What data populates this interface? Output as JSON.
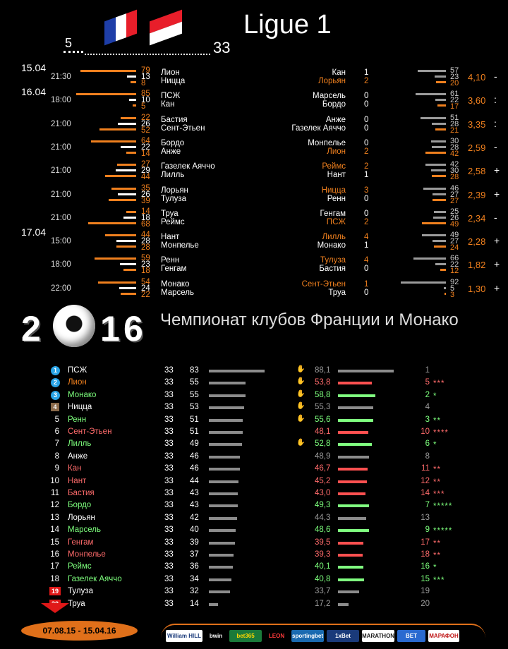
{
  "header": {
    "title": "Ligue 1",
    "rounds_played": "5",
    "rounds_total": "33"
  },
  "dates": [
    "15.04",
    "16.04",
    "17.04"
  ],
  "fixtures": [
    {
      "time": "21:30",
      "home": "Лион",
      "away": "Ницца",
      "h": "79",
      "d": "13",
      "a": "8",
      "hc": "orange",
      "ac": "white",
      "m_home": "Кан",
      "m_away": "Лорьян",
      "m_hg": "1",
      "m_ag": "2",
      "m_hc": "white",
      "m_ac": "orange",
      "p1": "57",
      "px": "23",
      "p2": "20",
      "odds": "4,10",
      "sign": "-"
    },
    {
      "time": "18:00",
      "home": "ПСЖ",
      "away": "Кан",
      "h": "85",
      "d": "10",
      "a": "5",
      "hc": "white",
      "ac": "white",
      "m_home": "Марсель",
      "m_away": "Бордо",
      "m_hg": "0",
      "m_ag": "0",
      "m_hc": "white",
      "m_ac": "white",
      "p1": "61",
      "px": "22",
      "p2": "17",
      "odds": "3,60",
      ":": "",
      "sign": ":"
    },
    {
      "time": "21:00",
      "home": "Бастия",
      "away": "Сент-Этьен",
      "h": "22",
      "d": "26",
      "a": "52",
      "hc": "white",
      "ac": "white",
      "m_home": "Анже",
      "m_away": "Газелек Аяччо",
      "m_hg": "0",
      "m_ag": "0",
      "m_hc": "white",
      "m_ac": "white",
      "p1": "51",
      "px": "28",
      "p2": "21",
      "odds": "3,35",
      "sign": ":"
    },
    {
      "time": "21:00",
      "home": "Бордо",
      "away": "Анже",
      "h": "64",
      "d": "22",
      "a": "14",
      "hc": "white",
      "ac": "white",
      "m_home": "Монпелье",
      "m_away": "Лион",
      "m_hg": "0",
      "m_ag": "2",
      "m_hc": "white",
      "m_ac": "orange",
      "p1": "30",
      "px": "28",
      "p2": "42",
      "odds": "2,59",
      "sign": "-"
    },
    {
      "time": "21:00",
      "home": "Газелек Аяччо",
      "away": "Лилль",
      "h": "27",
      "d": "29",
      "a": "44",
      "hc": "white",
      "ac": "white",
      "m_home": "Реймс",
      "m_away": "Нант",
      "m_hg": "2",
      "m_ag": "1",
      "m_hc": "orange",
      "m_ac": "white",
      "p1": "42",
      "px": "30",
      "p2": "28",
      "odds": "2,58",
      "sign": "+"
    },
    {
      "time": "21:00",
      "home": "Лорьян",
      "away": "Тулуза",
      "h": "35",
      "d": "26",
      "a": "39",
      "hc": "white",
      "ac": "white",
      "m_home": "Ницца",
      "m_away": "Ренн",
      "m_hg": "3",
      "m_ag": "0",
      "m_hc": "orange",
      "m_ac": "white",
      "p1": "46",
      "px": "27",
      "p2": "27",
      "odds": "2,39",
      "sign": "+"
    },
    {
      "time": "21:00",
      "home": "Труа",
      "away": "Реймс",
      "h": "14",
      "d": "18",
      "a": "68",
      "hc": "white",
      "ac": "white",
      "m_home": "Генгам",
      "m_away": "ПСЖ",
      "m_hg": "0",
      "m_ag": "2",
      "m_hc": "white",
      "m_ac": "orange",
      "p1": "25",
      "px": "26",
      "p2": "49",
      "odds": "2,34",
      "sign": "-"
    },
    {
      "time": "15:00",
      "home": "Нант",
      "away": "Монпелье",
      "h": "44",
      "d": "28",
      "a": "28",
      "hc": "white",
      "ac": "white",
      "m_home": "Лилль",
      "m_away": "Монако",
      "m_hg": "4",
      "m_ag": "1",
      "m_hc": "orange",
      "m_ac": "white",
      "p1": "49",
      "px": "27",
      "p2": "24",
      "odds": "2,28",
      "sign": "+"
    },
    {
      "time": "18:00",
      "home": "Ренн",
      "away": "Генгам",
      "h": "59",
      "d": "23",
      "a": "18",
      "hc": "white",
      "ac": "white",
      "m_home": "Тулуза",
      "m_away": "Бастия",
      "m_hg": "4",
      "m_ag": "0",
      "m_hc": "orange",
      "m_ac": "white",
      "p1": "66",
      "px": "22",
      "p2": "12",
      "odds": "1,82",
      "sign": "+"
    },
    {
      "time": "22:00",
      "home": "Монако",
      "away": "Марсель",
      "h": "54",
      "d": "24",
      "a": "22",
      "hc": "white",
      "ac": "white",
      "m_home": "Сент-Этьен",
      "m_away": "Труа",
      "m_hg": "1",
      "m_ag": "0",
      "m_hc": "orange",
      "m_ac": "white",
      "p1": "92",
      "px": "5",
      "p2": "3",
      "odds": "1,30",
      "sign": "+"
    }
  ],
  "season": {
    "year_left": "2",
    "year_right": "16",
    "year_one": "1",
    "heading": "Чемпионат клубов Франции и Монако"
  },
  "table": [
    {
      "pos": "1",
      "team": "ПСЖ",
      "tc": "white",
      "games": "33",
      "pts": "83",
      "rating": "88,1",
      "rc": "grey",
      "rank": "1",
      "rkc": "grey",
      "stars": "",
      "thumb": true,
      "mark": "badge"
    },
    {
      "pos": "2",
      "team": "Лион",
      "tc": "orange",
      "games": "33",
      "pts": "55",
      "rating": "53,8",
      "rc": "red",
      "rank": "5",
      "rkc": "red",
      "stars": "***",
      "thumb": true,
      "mark": "badge"
    },
    {
      "pos": "3",
      "team": "Монако",
      "tc": "green",
      "games": "33",
      "pts": "55",
      "rating": "58,8",
      "rc": "green",
      "rank": "2",
      "rkc": "green",
      "stars": "*",
      "thumb": true,
      "mark": "badge-dash"
    },
    {
      "pos": "4",
      "team": "Ницца",
      "tc": "white",
      "games": "33",
      "pts": "53",
      "rating": "55,3",
      "rc": "grey",
      "rank": "4",
      "rkc": "grey",
      "stars": "",
      "thumb": true,
      "mark": "brown"
    },
    {
      "pos": "5",
      "team": "Ренн",
      "tc": "green",
      "games": "33",
      "pts": "51",
      "rating": "55,6",
      "rc": "green",
      "rank": "3",
      "rkc": "green",
      "stars": "**",
      "thumb": true,
      "mark": ""
    },
    {
      "pos": "6",
      "team": "Сент-Этьен",
      "tc": "red",
      "games": "33",
      "pts": "51",
      "rating": "48,1",
      "rc": "red",
      "rank": "10",
      "rkc": "red",
      "stars": "****",
      "thumb": false,
      "mark": ""
    },
    {
      "pos": "7",
      "team": "Лилль",
      "tc": "green",
      "games": "33",
      "pts": "49",
      "rating": "52,8",
      "rc": "green",
      "rank": "6",
      "rkc": "green",
      "stars": "*",
      "thumb": true,
      "mark": ""
    },
    {
      "pos": "8",
      "team": "Анже",
      "tc": "white",
      "games": "33",
      "pts": "46",
      "rating": "48,9",
      "rc": "grey",
      "rank": "8",
      "rkc": "grey",
      "stars": "",
      "thumb": false,
      "mark": ""
    },
    {
      "pos": "9",
      "team": "Кан",
      "tc": "red",
      "games": "33",
      "pts": "46",
      "rating": "46,7",
      "rc": "red",
      "rank": "11",
      "rkc": "red",
      "stars": "**",
      "thumb": false,
      "mark": ""
    },
    {
      "pos": "10",
      "team": "Нант",
      "tc": "red",
      "games": "33",
      "pts": "44",
      "rating": "45,2",
      "rc": "red",
      "rank": "12",
      "rkc": "red",
      "stars": "**",
      "thumb": false,
      "mark": ""
    },
    {
      "pos": "11",
      "team": "Бастия",
      "tc": "red",
      "games": "33",
      "pts": "43",
      "rating": "43,0",
      "rc": "red",
      "rank": "14",
      "rkc": "red",
      "stars": "***",
      "thumb": false,
      "mark": ""
    },
    {
      "pos": "12",
      "team": "Бордо",
      "tc": "green",
      "games": "33",
      "pts": "43",
      "rating": "49,3",
      "rc": "green",
      "rank": "7",
      "rkc": "green",
      "stars": "*****",
      "thumb": false,
      "mark": ""
    },
    {
      "pos": "13",
      "team": "Лорьян",
      "tc": "white",
      "games": "33",
      "pts": "42",
      "rating": "44,3",
      "rc": "grey",
      "rank": "13",
      "rkc": "grey",
      "stars": "",
      "thumb": false,
      "mark": ""
    },
    {
      "pos": "14",
      "team": "Марсель",
      "tc": "green",
      "games": "33",
      "pts": "40",
      "rating": "48,6",
      "rc": "green",
      "rank": "9",
      "rkc": "green",
      "stars": "*****",
      "thumb": false,
      "mark": ""
    },
    {
      "pos": "15",
      "team": "Генгам",
      "tc": "red",
      "games": "33",
      "pts": "39",
      "rating": "39,5",
      "rc": "red",
      "rank": "17",
      "rkc": "red",
      "stars": "**",
      "thumb": false,
      "mark": ""
    },
    {
      "pos": "16",
      "team": "Монпелье",
      "tc": "red",
      "games": "33",
      "pts": "37",
      "rating": "39,3",
      "rc": "red",
      "rank": "18",
      "rkc": "red",
      "stars": "**",
      "thumb": false,
      "mark": ""
    },
    {
      "pos": "17",
      "team": "Реймс",
      "tc": "green",
      "games": "33",
      "pts": "36",
      "rating": "40,1",
      "rc": "green",
      "rank": "16",
      "rkc": "green",
      "stars": "*",
      "thumb": false,
      "mark": ""
    },
    {
      "pos": "18",
      "team": "Газелек Аяччо",
      "tc": "green",
      "games": "33",
      "pts": "34",
      "rating": "40,8",
      "rc": "green",
      "rank": "15",
      "rkc": "green",
      "stars": "***",
      "thumb": false,
      "mark": ""
    },
    {
      "pos": "19",
      "team": "Тулуза",
      "tc": "white",
      "games": "33",
      "pts": "32",
      "rating": "33,7",
      "rc": "grey",
      "rank": "19",
      "rkc": "grey",
      "stars": "",
      "thumb": false,
      "mark": "red"
    },
    {
      "pos": "20",
      "team": "Труа",
      "tc": "white",
      "games": "33",
      "pts": "14",
      "rating": "17,2",
      "rc": "grey",
      "rank": "20",
      "rkc": "grey",
      "stars": "",
      "thumb": false,
      "mark": "red"
    }
  ],
  "footer": {
    "period": "07.08.15 - 15.04.16",
    "sponsors": [
      "William HILL",
      "bwin",
      "bet365",
      "LEON",
      "sportingbet",
      "1xBet",
      "MARATHON",
      "BET",
      "МАРАФОН"
    ]
  },
  "colors": {
    "orange": "#f0801e",
    "green": "#7dff7d",
    "red": "#ff6b6b",
    "grey": "#9b9b9b",
    "bar_red": "#ff5050",
    "bar_green": "#80ff80"
  }
}
